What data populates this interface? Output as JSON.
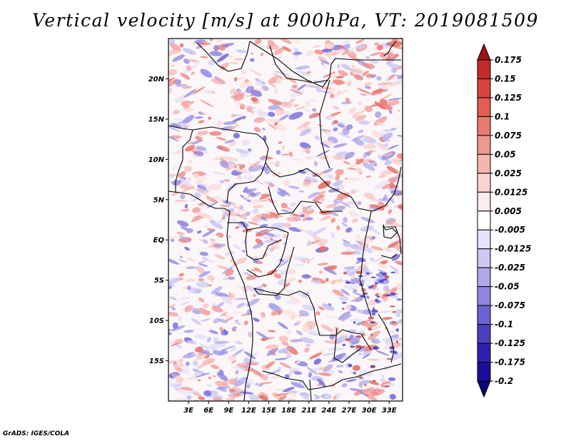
{
  "title": "Vertical velocity [m/s] at 900hPa, VT: 2019081509",
  "credit": "GrADS: IGES/COLA",
  "map": {
    "lon_range": [
      0,
      35
    ],
    "lat_range": [
      -20,
      25
    ],
    "lon_ticks": [
      {
        "lon": 3,
        "label": "3E"
      },
      {
        "lon": 6,
        "label": "6E"
      },
      {
        "lon": 9,
        "label": "9E"
      },
      {
        "lon": 12,
        "label": "12E"
      },
      {
        "lon": 15,
        "label": "15E"
      },
      {
        "lon": 18,
        "label": "18E"
      },
      {
        "lon": 21,
        "label": "21E"
      },
      {
        "lon": 24,
        "label": "24E"
      },
      {
        "lon": 27,
        "label": "27E"
      },
      {
        "lon": 30,
        "label": "30E"
      },
      {
        "lon": 33,
        "label": "33E"
      }
    ],
    "lat_ticks": [
      {
        "lat": 20,
        "label": "20N"
      },
      {
        "lat": 15,
        "label": "15N"
      },
      {
        "lat": 10,
        "label": "10N"
      },
      {
        "lat": 5,
        "label": "5N"
      },
      {
        "lat": 0,
        "label": "EQ"
      },
      {
        "lat": -5,
        "label": "5S"
      },
      {
        "lat": -10,
        "label": "10S"
      },
      {
        "lat": -15,
        "label": "15S"
      }
    ],
    "field": "vertical velocity, shaded red (upward) / blue (downward)"
  },
  "colorbar": {
    "labels": [
      "0.175",
      "0.15",
      "0.125",
      "0.1",
      "0.075",
      "0.05",
      "0.025",
      "0.0125",
      "0.005",
      "-0.005",
      "-0.0125",
      "-0.025",
      "-0.05",
      "-0.075",
      "-0.1",
      "-0.125",
      "-0.175",
      "-0.2"
    ],
    "colors": [
      "#a01418",
      "#c42a2a",
      "#d9443e",
      "#e25d52",
      "#ea7a70",
      "#f19890",
      "#f6b6b0",
      "#fad4d0",
      "#fdeceb",
      "#ffffff",
      "#e6e4fa",
      "#cdc9f4",
      "#aea8ec",
      "#8e86e0",
      "#6c62d2",
      "#4a3fc2",
      "#2e22ad",
      "#1a0e98",
      "#0a0080"
    ]
  }
}
